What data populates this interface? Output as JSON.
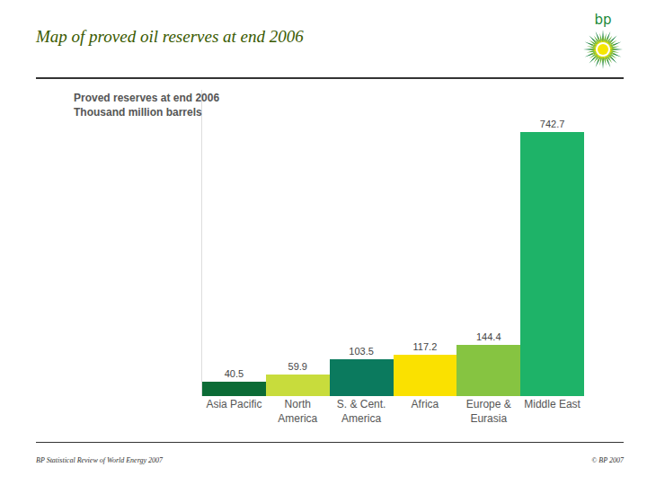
{
  "slide": {
    "title": "Map of proved oil reserves at end 2006",
    "logo": "bp",
    "source": "BP Statistical Review of World Energy 2007",
    "copyright": "© BP 2007"
  },
  "chart_data": {
    "type": "bar",
    "title": "Proved reserves at end 2006",
    "subtitle": "Thousand million barrels",
    "categories": [
      "Asia Pacific",
      "North\nAmerica",
      "S. & Cent.\nAmerica",
      "Africa",
      "Europe &\nEurasia",
      "Middle East"
    ],
    "values": [
      40.5,
      59.9,
      103.5,
      117.2,
      144.4,
      742.7
    ],
    "colors": [
      "#0b6b35",
      "#c8dc3c",
      "#0b7a5e",
      "#fae100",
      "#86c441",
      "#1eb368"
    ],
    "ylim": [
      0,
      860
    ],
    "grid": false,
    "data_labels": true,
    "tick_labels": "x"
  }
}
